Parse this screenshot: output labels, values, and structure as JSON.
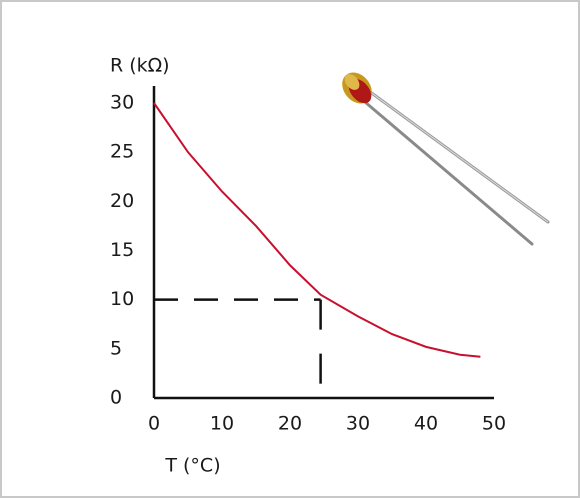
{
  "chart_data": {
    "type": "line",
    "x_label": "T (°C)",
    "y_label": "R (kΩ)",
    "x": [
      0,
      5,
      10,
      15,
      20,
      24.5,
      30,
      35,
      40,
      45,
      48
    ],
    "series": [
      {
        "color": "#c8102e",
        "values": [
          30,
          25,
          21,
          17.5,
          13.5,
          10.5,
          8.3,
          6.5,
          5.2,
          4.4,
          4.2
        ]
      }
    ],
    "xlim": [
      0,
      50
    ],
    "xticks": [
      0,
      10,
      20,
      30,
      40,
      50
    ],
    "ylim": [
      0,
      30
    ],
    "yticks": [
      0,
      5,
      10,
      15,
      20,
      25,
      30
    ],
    "reference": {
      "x": 24.5,
      "y": 10
    }
  }
}
